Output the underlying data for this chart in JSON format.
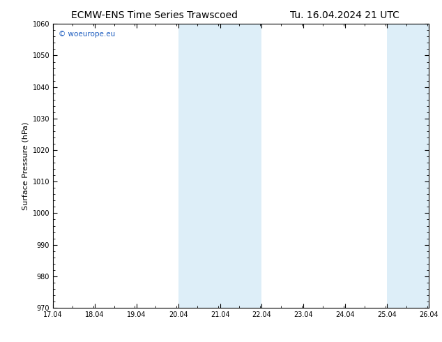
{
  "title_left": "ECMW-ENS Time Series Trawscoed",
  "title_right": "Tu. 16.04.2024 21 UTC",
  "ylabel": "Surface Pressure (hPa)",
  "ylim": [
    970,
    1060
  ],
  "yticks": [
    970,
    980,
    990,
    1000,
    1010,
    1020,
    1030,
    1040,
    1050,
    1060
  ],
  "xlim": [
    17.04,
    26.04
  ],
  "xticks": [
    17.04,
    18.04,
    19.04,
    20.04,
    21.04,
    22.04,
    23.04,
    24.04,
    25.04,
    26.04
  ],
  "xticklabels": [
    "17.04",
    "18.04",
    "19.04",
    "20.04",
    "21.04",
    "22.04",
    "23.04",
    "24.04",
    "25.04",
    "26.04"
  ],
  "shaded_regions": [
    {
      "xmin": 20.04,
      "xmax": 21.04,
      "color": "#ddeef8"
    },
    {
      "xmin": 21.04,
      "xmax": 22.04,
      "color": "#ddeef8"
    },
    {
      "xmin": 25.04,
      "xmax": 25.54,
      "color": "#ddeef8"
    },
    {
      "xmin": 25.54,
      "xmax": 26.04,
      "color": "#ddeef8"
    }
  ],
  "watermark_text": "© woeurope.eu",
  "watermark_color": "#1a5bbf",
  "background_color": "#ffffff",
  "plot_bg_color": "#ffffff",
  "title_fontsize": 10,
  "ylabel_fontsize": 8,
  "tick_fontsize": 7,
  "watermark_fontsize": 7.5
}
